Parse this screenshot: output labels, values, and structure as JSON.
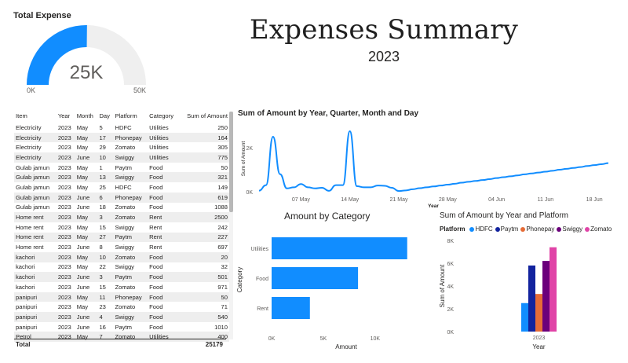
{
  "header": {
    "title": "Expenses Summary",
    "subtitle": "2023"
  },
  "kpi": {
    "title": "Total Expense",
    "value_label": "25K",
    "min_label": "0K",
    "max_label": "50K",
    "value": 25179,
    "max": 50000,
    "fill_color": "#118DFF",
    "track_color": "#EFEFEF"
  },
  "table": {
    "columns": [
      "Item",
      "Year",
      "Month",
      "Day",
      "Platform",
      "Category",
      "Sum of Amount"
    ],
    "rows": [
      [
        "Electricity",
        "2023",
        "May",
        "5",
        "HDFC",
        "Utilities",
        "250"
      ],
      [
        "Electricity",
        "2023",
        "May",
        "17",
        "Phonepay",
        "Utilities",
        "164"
      ],
      [
        "Electricity",
        "2023",
        "May",
        "29",
        "Zomato",
        "Utilities",
        "305"
      ],
      [
        "Electricity",
        "2023",
        "June",
        "10",
        "Swiggy",
        "Utilities",
        "775"
      ],
      [
        "Gulab jamun",
        "2023",
        "May",
        "1",
        "Paytm",
        "Food",
        "50"
      ],
      [
        "Gulab jamun",
        "2023",
        "May",
        "13",
        "Swiggy",
        "Food",
        "321"
      ],
      [
        "Gulab jamun",
        "2023",
        "May",
        "25",
        "HDFC",
        "Food",
        "149"
      ],
      [
        "Gulab jamun",
        "2023",
        "June",
        "6",
        "Phonepay",
        "Food",
        "619"
      ],
      [
        "Gulab jamun",
        "2023",
        "June",
        "18",
        "Zomato",
        "Food",
        "1088"
      ],
      [
        "Home rent",
        "2023",
        "May",
        "3",
        "Zomato",
        "Rent",
        "2500"
      ],
      [
        "Home rent",
        "2023",
        "May",
        "15",
        "Swiggy",
        "Rent",
        "242"
      ],
      [
        "Home rent",
        "2023",
        "May",
        "27",
        "Paytm",
        "Rent",
        "227"
      ],
      [
        "Home rent",
        "2023",
        "June",
        "8",
        "Swiggy",
        "Rent",
        "697"
      ],
      [
        "kachori",
        "2023",
        "May",
        "10",
        "Zomato",
        "Food",
        "20"
      ],
      [
        "kachori",
        "2023",
        "May",
        "22",
        "Swiggy",
        "Food",
        "32"
      ],
      [
        "kachori",
        "2023",
        "June",
        "3",
        "Paytm",
        "Food",
        "501"
      ],
      [
        "kachori",
        "2023",
        "June",
        "15",
        "Zomato",
        "Food",
        "971"
      ],
      [
        "panipuri",
        "2023",
        "May",
        "11",
        "Phonepay",
        "Food",
        "50"
      ],
      [
        "panipuri",
        "2023",
        "May",
        "23",
        "Zomato",
        "Food",
        "71"
      ],
      [
        "panipuri",
        "2023",
        "June",
        "4",
        "Swiggy",
        "Food",
        "540"
      ],
      [
        "panipuri",
        "2023",
        "June",
        "16",
        "Paytm",
        "Food",
        "1010"
      ],
      [
        "Petrol",
        "2023",
        "May",
        "7",
        "Zomato",
        "Utilities",
        "400"
      ]
    ],
    "total_label": "Total",
    "total_value": "25179"
  },
  "chart_data": [
    {
      "type": "line",
      "title": "Sum of Amount by Year, Quarter, Month and Day",
      "xlabel": "Year",
      "ylabel": "Sum of Amount",
      "x_ticks": [
        "07 May",
        "14 May",
        "21 May",
        "28 May",
        "04 Jun",
        "11 Jun",
        "18 Jun"
      ],
      "y_ticks": [
        "0K",
        "2K"
      ],
      "ylim": [
        0,
        3000
      ],
      "x": [
        "2023-05-01",
        "2023-05-02",
        "2023-05-03",
        "2023-05-04",
        "2023-05-05",
        "2023-05-06",
        "2023-05-07",
        "2023-05-08",
        "2023-05-09",
        "2023-05-10",
        "2023-05-11",
        "2023-05-12",
        "2023-05-13",
        "2023-05-14",
        "2023-05-15",
        "2023-05-16",
        "2023-05-17",
        "2023-05-18",
        "2023-05-19",
        "2023-05-20",
        "2023-05-21",
        "2023-05-22",
        "2023-05-23",
        "2023-05-24",
        "2023-05-25",
        "2023-05-26",
        "2023-05-27",
        "2023-05-28",
        "2023-05-29",
        "2023-05-30",
        "2023-05-31",
        "2023-06-01",
        "2023-06-02",
        "2023-06-03",
        "2023-06-04",
        "2023-06-05",
        "2023-06-06",
        "2023-06-07",
        "2023-06-08",
        "2023-06-09",
        "2023-06-10",
        "2023-06-11",
        "2023-06-12",
        "2023-06-13",
        "2023-06-14",
        "2023-06-15",
        "2023-06-16",
        "2023-06-17",
        "2023-06-18",
        "2023-06-19",
        "2023-06-20"
      ],
      "series": [
        {
          "name": "",
          "color": "#118DFF",
          "values": [
            50,
            300,
            2500,
            800,
            150,
            200,
            350,
            200,
            150,
            180,
            40,
            300,
            300,
            2750,
            250,
            200,
            200,
            280,
            270,
            180,
            30,
            60,
            110,
            160,
            200,
            240,
            280,
            320,
            360,
            410,
            450,
            490,
            530,
            570,
            620,
            660,
            700,
            740,
            790,
            830,
            870,
            910,
            950,
            1000,
            1040,
            1080,
            1120,
            1170,
            1210,
            1250,
            1300
          ]
        }
      ]
    },
    {
      "type": "bar",
      "orientation": "horizontal",
      "title": "Amount by Category",
      "xlabel": "Amount",
      "ylabel": "Category",
      "categories": [
        "Utilities",
        "Food",
        "Rent"
      ],
      "values": [
        13100,
        8350,
        3700
      ],
      "x_ticks": [
        "0K",
        "5K",
        "10K"
      ],
      "xlim": [
        0,
        13500
      ],
      "color": "#118DFF"
    },
    {
      "type": "bar",
      "title": "Sum of Amount by Year and Platform",
      "xlabel": "Year",
      "ylabel": "Sum of Amount",
      "legend_title": "Platform",
      "legend_position": "top",
      "categories": [
        "2023"
      ],
      "y_ticks": [
        "0K",
        "2K",
        "4K",
        "6K",
        "8K"
      ],
      "ylim": [
        0,
        8000
      ],
      "series": [
        {
          "name": "HDFC",
          "color": "#118DFF",
          "values": [
            2500
          ]
        },
        {
          "name": "Paytm",
          "color": "#12239E",
          "values": [
            5800
          ]
        },
        {
          "name": "Phonepay",
          "color": "#E66C37",
          "values": [
            3300
          ]
        },
        {
          "name": "Swiggy",
          "color": "#6B007B",
          "values": [
            6200
          ]
        },
        {
          "name": "Zomato",
          "color": "#E044A7",
          "values": [
            7400
          ]
        }
      ]
    }
  ]
}
